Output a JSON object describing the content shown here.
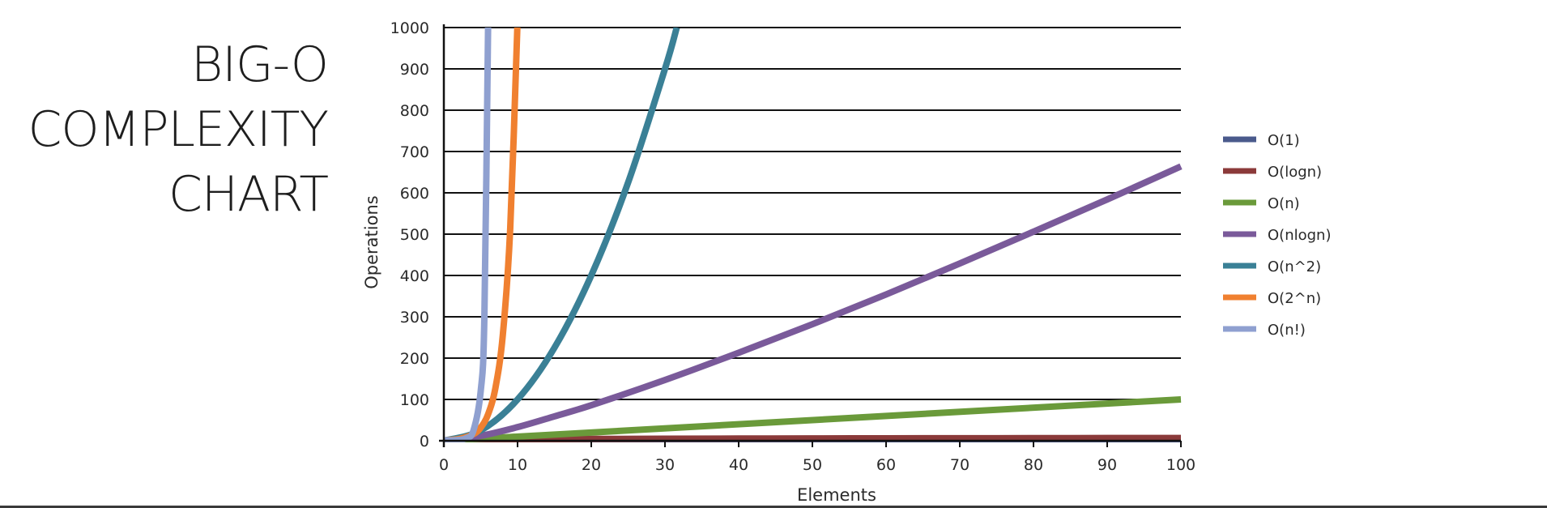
{
  "title": {
    "lines": [
      "BIG-O",
      "COMPLEXITY",
      "CHART"
    ]
  },
  "chart_data": {
    "type": "line",
    "xlabel": "Elements",
    "ylabel": "Operations",
    "xlim": [
      0,
      100
    ],
    "ylim": [
      0,
      1000
    ],
    "xticks": [
      0,
      10,
      20,
      30,
      40,
      50,
      60,
      70,
      80,
      90,
      100
    ],
    "yticks": [
      0,
      100,
      200,
      300,
      400,
      500,
      600,
      700,
      800,
      900,
      1000
    ],
    "grid": "horizontal",
    "legend_position": "right",
    "series": [
      {
        "name": "O(1)",
        "color": "#4a5a8c",
        "x": [
          0,
          100
        ],
        "y": [
          1,
          1
        ]
      },
      {
        "name": "O(logn)",
        "color": "#8b3a3a",
        "x": [
          0,
          10,
          20,
          30,
          40,
          50,
          60,
          70,
          80,
          90,
          100
        ],
        "y": [
          0,
          3.3,
          4.3,
          4.9,
          5.3,
          5.6,
          5.9,
          6.1,
          6.3,
          6.5,
          6.6
        ]
      },
      {
        "name": "O(n)",
        "color": "#6a9a3a",
        "x": [
          0,
          100
        ],
        "y": [
          0,
          100
        ]
      },
      {
        "name": "O(nlogn)",
        "color": "#7a5a9a",
        "x": [
          0,
          5,
          10,
          15,
          20,
          30,
          40,
          50,
          60,
          70,
          80,
          90,
          100
        ],
        "y": [
          0,
          12,
          33,
          59,
          86,
          147,
          213,
          282,
          354,
          429,
          506,
          584,
          664
        ]
      },
      {
        "name": "O(n^2)",
        "color": "#3a8096",
        "x": [
          0,
          5,
          10,
          15,
          20,
          25,
          30,
          31.6
        ],
        "y": [
          0,
          25,
          100,
          225,
          400,
          625,
          900,
          1000
        ]
      },
      {
        "name": "O(2^n)",
        "color": "#f08030",
        "x": [
          0,
          2,
          4,
          5,
          6,
          7,
          8,
          9,
          9.97
        ],
        "y": [
          1,
          4,
          16,
          32,
          64,
          128,
          256,
          512,
          1000
        ]
      },
      {
        "name": "O(n!)",
        "color": "#8fa0d0",
        "x": [
          0,
          1,
          2,
          3,
          4,
          5,
          5.5,
          6.0
        ],
        "y": [
          1,
          1,
          2,
          6,
          24,
          120,
          300,
          1000
        ]
      }
    ]
  }
}
